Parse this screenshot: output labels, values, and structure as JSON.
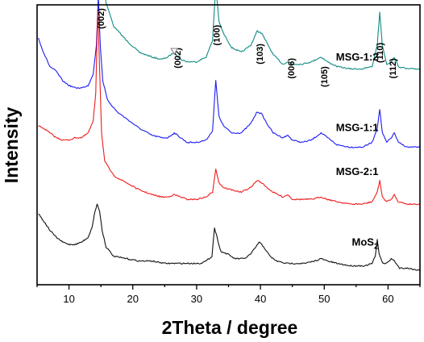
{
  "chart_data": {
    "type": "line",
    "xlabel": "2Theta / degree",
    "ylabel": "Intensity",
    "xlim": [
      5,
      65
    ],
    "x_ticks": [
      10,
      20,
      30,
      40,
      50,
      60
    ],
    "y_ticks_shown": false,
    "grid": false,
    "series": [
      {
        "name": "MSG-1:2",
        "label": "MSG-1:2",
        "color": "#108b83",
        "offset": 75,
        "x": [
          5.2,
          6.0,
          7.0,
          7.8,
          8.2,
          9.0,
          10.0,
          11.0,
          12.0,
          13.0,
          13.8,
          14.4,
          14.8,
          15.2,
          15.8,
          17.0,
          19.0,
          21.0,
          23.0,
          24.5,
          25.5,
          26.5,
          27.5,
          28.5,
          30.0,
          31.5,
          32.5,
          33.0,
          33.5,
          34.2,
          35.5,
          37.0,
          38.5,
          39.5,
          40.2,
          41.0,
          42.0,
          43.5,
          44.3,
          45.0,
          46.5,
          48.0,
          49.5,
          50.5,
          52.0,
          54.0,
          56.0,
          57.5,
          58.3,
          58.7,
          59.1,
          59.8,
          60.5,
          61.0,
          61.6,
          63.0,
          65.0
        ],
        "y": [
          95,
          80,
          70,
          64,
          71,
          56,
          52,
          50,
          50,
          52,
          58,
          70,
          100,
          58,
          38,
          28,
          22,
          17,
          15,
          14,
          15,
          17,
          14,
          13,
          13,
          15,
          22,
          45,
          30,
          25,
          19,
          17,
          20,
          26,
          25,
          21,
          16,
          12,
          13,
          12,
          12,
          13,
          15,
          13,
          11,
          10,
          10,
          11,
          20,
          34,
          20,
          12,
          13,
          15,
          11,
          10,
          10
        ]
      },
      {
        "name": "MSG-1:1",
        "label": "MSG-1:1",
        "color": "#1c1cf0",
        "offset": 50,
        "x": [
          5.2,
          6.0,
          7.0,
          8.0,
          9.0,
          10.0,
          11.0,
          12.0,
          13.0,
          13.8,
          14.3,
          14.6,
          14.9,
          15.3,
          16.0,
          17.5,
          19.0,
          21.0,
          23.0,
          24.5,
          25.5,
          26.5,
          27.5,
          28.5,
          30.0,
          31.5,
          32.5,
          33.0,
          33.5,
          34.2,
          35.5,
          37.0,
          38.5,
          39.5,
          40.2,
          41.0,
          42.0,
          43.5,
          44.3,
          45.0,
          46.5,
          48.0,
          49.5,
          50.5,
          52.0,
          54.0,
          56.0,
          57.5,
          58.3,
          58.7,
          59.1,
          59.8,
          60.5,
          61.0,
          61.6,
          63.0,
          65.0
        ],
        "y": [
          48,
          42,
          36,
          34,
          30,
          28,
          27,
          27,
          28,
          33,
          45,
          66,
          45,
          30,
          22,
          17,
          14,
          10,
          7,
          6,
          6,
          8,
          6,
          4,
          4,
          5,
          9,
          30,
          15,
          11,
          8,
          8,
          12,
          17,
          16,
          12,
          8,
          6,
          7,
          5,
          4,
          5,
          8,
          6,
          3,
          2,
          2,
          4,
          10,
          18,
          8,
          4,
          6,
          8,
          4,
          2,
          2
        ]
      },
      {
        "name": "MSG-2:1",
        "label": "MSG-2:1",
        "color": "#ee1c1c",
        "offset": 25,
        "x": [
          5.2,
          6.0,
          7.0,
          8.0,
          9.0,
          10.0,
          11.0,
          12.0,
          13.0,
          13.8,
          14.2,
          14.5,
          14.8,
          15.1,
          15.6,
          17.0,
          19.0,
          21.0,
          23.0,
          24.5,
          25.5,
          26.5,
          27.5,
          28.5,
          30.0,
          31.5,
          32.5,
          33.0,
          33.5,
          34.2,
          35.5,
          37.0,
          38.5,
          39.5,
          40.2,
          41.0,
          42.0,
          43.5,
          44.3,
          45.0,
          46.5,
          48.0,
          49.5,
          50.5,
          52.0,
          54.0,
          56.0,
          57.5,
          58.3,
          58.7,
          59.1,
          59.8,
          60.5,
          61.0,
          61.6,
          63.0,
          65.0
        ],
        "y": [
          36,
          35,
          33,
          31,
          30,
          30,
          31,
          31,
          33,
          38,
          50,
          85,
          60,
          33,
          21,
          15,
          12,
          9,
          7,
          6,
          6,
          7,
          6,
          5,
          5,
          6,
          8,
          18,
          12,
          10,
          9,
          8,
          10,
          13,
          12,
          10,
          8,
          6,
          7,
          5,
          5,
          5,
          6,
          5,
          4,
          3,
          3,
          4,
          8,
          13,
          6,
          4,
          5,
          7,
          4,
          3,
          3
        ]
      },
      {
        "name": "MoS2",
        "label": "MoS",
        "label_subscript": "2",
        "color": "#111111",
        "offset": 0,
        "x": [
          5.2,
          6.0,
          7.0,
          8.0,
          9.0,
          10.0,
          11.0,
          12.0,
          13.0,
          13.6,
          14.0,
          14.4,
          14.8,
          15.2,
          15.8,
          17.0,
          19.0,
          21.0,
          23.0,
          25.0,
          27.0,
          29.0,
          30.5,
          31.5,
          32.4,
          32.8,
          33.2,
          33.8,
          34.8,
          36.0,
          37.5,
          38.5,
          39.3,
          39.8,
          40.5,
          41.5,
          42.5,
          44.0,
          45.5,
          47.0,
          48.5,
          49.5,
          50.5,
          52.0,
          54.0,
          55.5,
          56.5,
          57.5,
          58.0,
          58.3,
          58.6,
          59.2,
          59.8,
          60.5,
          61.0,
          61.8,
          63.0,
          65.0
        ],
        "y": [
          24,
          21,
          17,
          14,
          12,
          11,
          11,
          12,
          14,
          18,
          24,
          28,
          25,
          17,
          10,
          6,
          5,
          4,
          4,
          3,
          3,
          3,
          3,
          4,
          6,
          18,
          14,
          8,
          7,
          5,
          5,
          7,
          10,
          12,
          10,
          6,
          4,
          3,
          3,
          3,
          4,
          5,
          4,
          3,
          2,
          2,
          2,
          3,
          6,
          13,
          7,
          3,
          3,
          5,
          4,
          1,
          1,
          0
        ]
      }
    ],
    "series_labels": [
      {
        "text": "MSG-1:2",
        "x": 58.5,
        "y": 88.5
      },
      {
        "text": "MSG-1:1",
        "x": 58.5,
        "y": 58.8
      },
      {
        "text": "MSG-2:1",
        "x": 58.5,
        "y": 40.2
      },
      {
        "text": "MoS",
        "sub": "2",
        "x": 58.5,
        "y": 10.5
      }
    ],
    "annotations": [
      {
        "text": "(002)",
        "x": 15.5,
        "y": 106.2
      },
      {
        "text": "(002)",
        "x": 27.5,
        "y": 89.6
      },
      {
        "text": "(100)",
        "x": 33.6,
        "y": 99.2
      },
      {
        "text": "(103)",
        "x": 40.4,
        "y": 91.3
      },
      {
        "text": "(006)",
        "x": 45.3,
        "y": 85.2
      },
      {
        "text": "(105)",
        "x": 50.5,
        "y": 81.7
      },
      {
        "text": "(110)",
        "x": 59.2,
        "y": 91.8
      },
      {
        "text": "(112)",
        "x": 61.2,
        "y": 85.2
      }
    ],
    "markers": [
      {
        "shape": "triangle-down",
        "color": "#909090",
        "x": 26.5,
        "y": 92.6
      }
    ]
  }
}
